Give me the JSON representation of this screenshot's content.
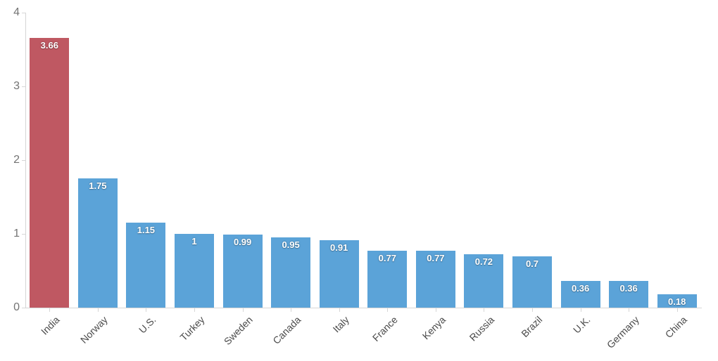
{
  "chart": {
    "background_color": "#ffffff",
    "axis_color": "#d6d6d6",
    "y_tick_label_color": "#737373",
    "x_tick_label_color": "#4a4a4a",
    "data_label_color": "#ffffff",
    "highlight_color": "#bf5862",
    "default_bar_color": "#5ba3d8"
  },
  "chart_data": {
    "type": "bar",
    "title": "",
    "xlabel": "",
    "ylabel": "",
    "categories": [
      "India",
      "Norway",
      "U.S.",
      "Turkey",
      "Sweden",
      "Canada",
      "Italy",
      "France",
      "Kenya",
      "Russia",
      "Brazil",
      "U.K.",
      "Germany",
      "China"
    ],
    "values": [
      3.66,
      1.75,
      1.15,
      1,
      0.99,
      0.95,
      0.91,
      0.77,
      0.77,
      0.72,
      0.7,
      0.36,
      0.36,
      0.18
    ],
    "data_labels": [
      "3.66",
      "1.75",
      "1.15",
      "1",
      "0.99",
      "0.95",
      "0.91",
      "0.77",
      "0.77",
      "0.72",
      "0.7",
      "0.36",
      "0.36",
      "0.18"
    ],
    "bar_colors": [
      "#bf5862",
      "#5ba3d8",
      "#5ba3d8",
      "#5ba3d8",
      "#5ba3d8",
      "#5ba3d8",
      "#5ba3d8",
      "#5ba3d8",
      "#5ba3d8",
      "#5ba3d8",
      "#5ba3d8",
      "#5ba3d8",
      "#5ba3d8",
      "#5ba3d8"
    ],
    "ylim": [
      0,
      4
    ],
    "yticks": [
      0,
      1,
      2,
      3,
      4
    ],
    "grid": false,
    "legend": false,
    "x_label_rotation": -45,
    "data_labels_inside": true
  }
}
